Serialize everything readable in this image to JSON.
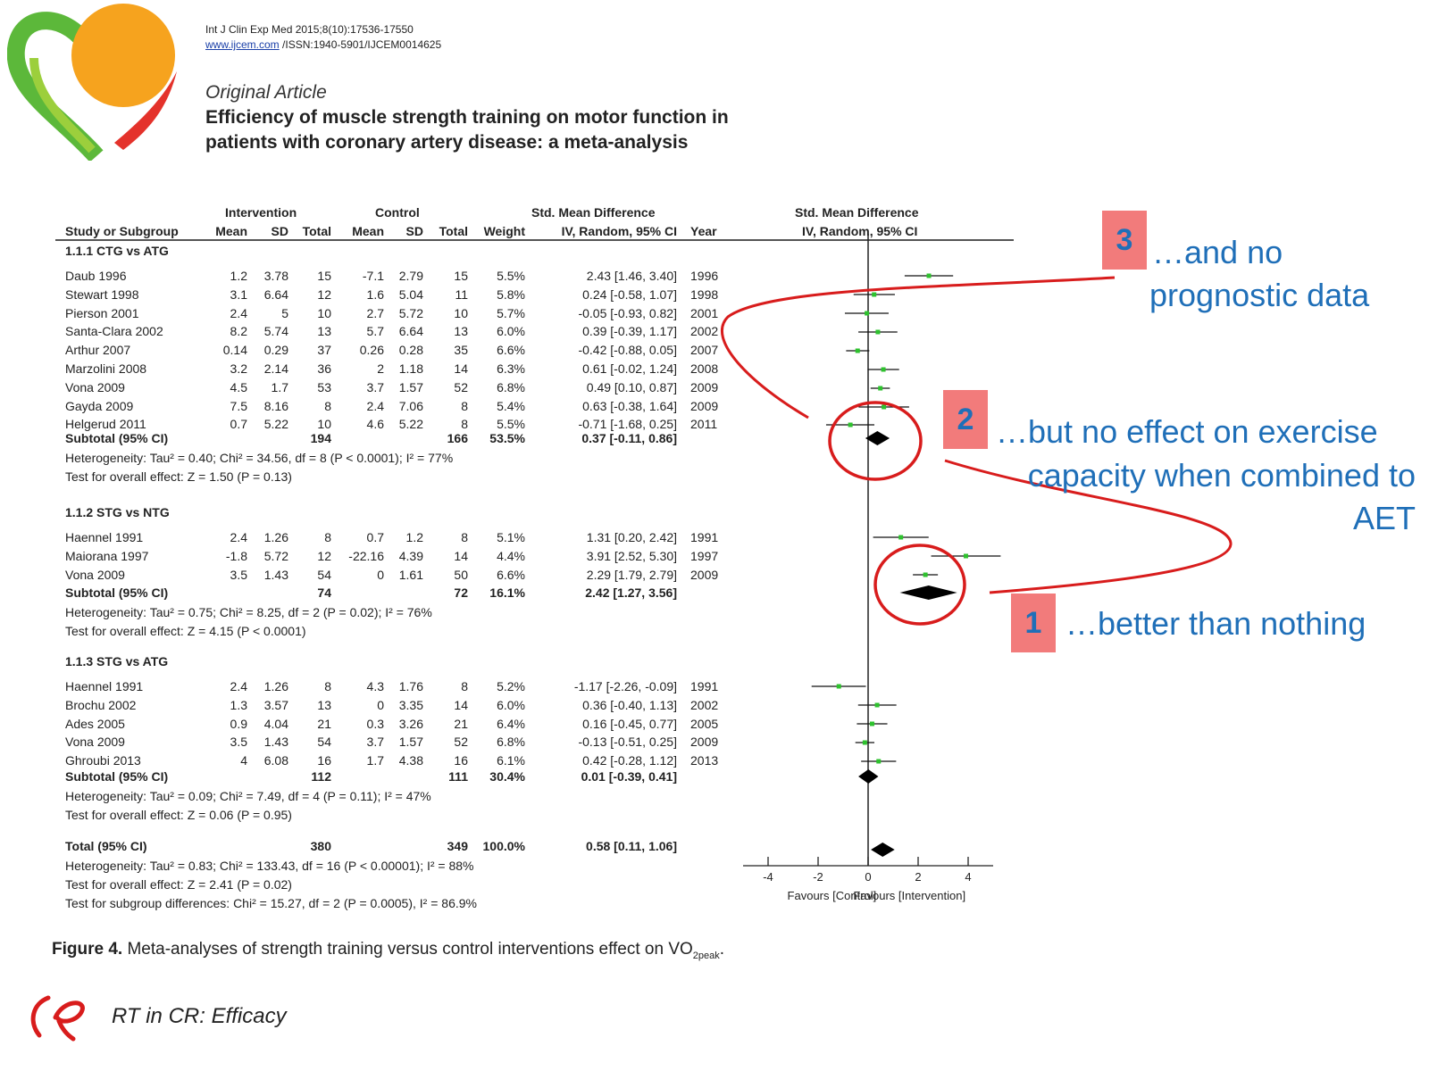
{
  "header": {
    "journal_line": "Int J Clin Exp Med 2015;8(10):17536-17550",
    "url": "www.ijcem.com",
    "issn": " /ISSN:1940-5901/IJCEM0014625",
    "article_type": "Original Article",
    "title": "Efficiency of muscle strength training on motor function in patients with coronary artery disease: a meta-analysis"
  },
  "table": {
    "group_headers": {
      "intervention": "Intervention",
      "control": "Control",
      "smd": "Std. Mean Difference",
      "smd_plot": "Std. Mean Difference"
    },
    "columns": {
      "study": "Study or Subgroup",
      "mean": "Mean",
      "sd": "SD",
      "total": "Total",
      "mean2": "Mean",
      "sd2": "SD",
      "total2": "Total",
      "weight": "Weight",
      "ci": "IV, Random, 95% CI",
      "year": "Year",
      "ci_plot": "IV, Random, 95% CI"
    },
    "subgroups": [
      {
        "title": "1.1.1 CTG vs ATG",
        "studies": [
          {
            "name": "Daub 1996",
            "m1": "1.2",
            "sd1": "3.78",
            "n1": "15",
            "m2": "-7.1",
            "sd2": "2.79",
            "n2": "15",
            "w": "5.5%",
            "ci": "2.43 [1.46, 3.40]",
            "year": "1996"
          },
          {
            "name": "Stewart 1998",
            "m1": "3.1",
            "sd1": "6.64",
            "n1": "12",
            "m2": "1.6",
            "sd2": "5.04",
            "n2": "11",
            "w": "5.8%",
            "ci": "0.24 [-0.58, 1.07]",
            "year": "1998"
          },
          {
            "name": "Pierson 2001",
            "m1": "2.4",
            "sd1": "5",
            "n1": "10",
            "m2": "2.7",
            "sd2": "5.72",
            "n2": "10",
            "w": "5.7%",
            "ci": "-0.05 [-0.93, 0.82]",
            "year": "2001"
          },
          {
            "name": "Santa-Clara 2002",
            "m1": "8.2",
            "sd1": "5.74",
            "n1": "13",
            "m2": "5.7",
            "sd2": "6.64",
            "n2": "13",
            "w": "6.0%",
            "ci": "0.39 [-0.39, 1.17]",
            "year": "2002"
          },
          {
            "name": "Arthur 2007",
            "m1": "0.14",
            "sd1": "0.29",
            "n1": "37",
            "m2": "0.26",
            "sd2": "0.28",
            "n2": "35",
            "w": "6.6%",
            "ci": "-0.42 [-0.88, 0.05]",
            "year": "2007"
          },
          {
            "name": "Marzolini 2008",
            "m1": "3.2",
            "sd1": "2.14",
            "n1": "36",
            "m2": "2",
            "sd2": "1.18",
            "n2": "14",
            "w": "6.3%",
            "ci": "0.61 [-0.02, 1.24]",
            "year": "2008"
          },
          {
            "name": "Vona 2009",
            "m1": "4.5",
            "sd1": "1.7",
            "n1": "53",
            "m2": "3.7",
            "sd2": "1.57",
            "n2": "52",
            "w": "6.8%",
            "ci": "0.49 [0.10, 0.87]",
            "year": "2009"
          },
          {
            "name": "Gayda 2009",
            "m1": "7.5",
            "sd1": "8.16",
            "n1": "8",
            "m2": "2.4",
            "sd2": "7.06",
            "n2": "8",
            "w": "5.4%",
            "ci": "0.63 [-0.38, 1.64]",
            "year": "2009"
          },
          {
            "name": "Helgerud 2011",
            "m1": "0.7",
            "sd1": "5.22",
            "n1": "10",
            "m2": "4.6",
            "sd2": "5.22",
            "n2": "8",
            "w": "5.5%",
            "ci": "-0.71 [-1.68, 0.25]",
            "year": "2011"
          }
        ],
        "subtotal": {
          "label": "Subtotal (95% CI)",
          "n1": "194",
          "n2": "166",
          "w": "53.5%",
          "ci": "0.37 [-0.11, 0.86]"
        },
        "heterogeneity": "Heterogeneity: Tau² = 0.40; Chi² = 34.56, df = 8 (P < 0.0001); I² = 77%",
        "overall": "Test for overall effect: Z = 1.50 (P = 0.13)"
      },
      {
        "title": "1.1.2 STG vs NTG",
        "studies": [
          {
            "name": "Haennel 1991",
            "m1": "2.4",
            "sd1": "1.26",
            "n1": "8",
            "m2": "0.7",
            "sd2": "1.2",
            "n2": "8",
            "w": "5.1%",
            "ci": "1.31 [0.20, 2.42]",
            "year": "1991"
          },
          {
            "name": "Maiorana 1997",
            "m1": "-1.8",
            "sd1": "5.72",
            "n1": "12",
            "m2": "-22.16",
            "sd2": "4.39",
            "n2": "14",
            "w": "4.4%",
            "ci": "3.91 [2.52, 5.30]",
            "year": "1997"
          },
          {
            "name": "Vona 2009",
            "m1": "3.5",
            "sd1": "1.43",
            "n1": "54",
            "m2": "0",
            "sd2": "1.61",
            "n2": "50",
            "w": "6.6%",
            "ci": "2.29 [1.79, 2.79]",
            "year": "2009"
          }
        ],
        "subtotal": {
          "label": "Subtotal (95% CI)",
          "n1": "74",
          "n2": "72",
          "w": "16.1%",
          "ci": "2.42 [1.27, 3.56]"
        },
        "heterogeneity": "Heterogeneity: Tau² = 0.75; Chi² = 8.25, df = 2 (P = 0.02); I² = 76%",
        "overall": "Test for overall effect: Z = 4.15 (P < 0.0001)"
      },
      {
        "title": "1.1.3 STG vs ATG",
        "studies": [
          {
            "name": "Haennel 1991",
            "m1": "2.4",
            "sd1": "1.26",
            "n1": "8",
            "m2": "4.3",
            "sd2": "1.76",
            "n2": "8",
            "w": "5.2%",
            "ci": "-1.17 [-2.26, -0.09]",
            "year": "1991"
          },
          {
            "name": "Brochu 2002",
            "m1": "1.3",
            "sd1": "3.57",
            "n1": "13",
            "m2": "0",
            "sd2": "3.35",
            "n2": "14",
            "w": "6.0%",
            "ci": "0.36 [-0.40, 1.13]",
            "year": "2002"
          },
          {
            "name": "Ades 2005",
            "m1": "0.9",
            "sd1": "4.04",
            "n1": "21",
            "m2": "0.3",
            "sd2": "3.26",
            "n2": "21",
            "w": "6.4%",
            "ci": "0.16 [-0.45, 0.77]",
            "year": "2005"
          },
          {
            "name": "Vona 2009",
            "m1": "3.5",
            "sd1": "1.43",
            "n1": "54",
            "m2": "3.7",
            "sd2": "1.57",
            "n2": "52",
            "w": "6.8%",
            "ci": "-0.13 [-0.51, 0.25]",
            "year": "2009"
          },
          {
            "name": "Ghroubi 2013",
            "m1": "4",
            "sd1": "6.08",
            "n1": "16",
            "m2": "1.7",
            "sd2": "4.38",
            "n2": "16",
            "w": "6.1%",
            "ci": "0.42 [-0.28, 1.12]",
            "year": "2013"
          }
        ],
        "subtotal": {
          "label": "Subtotal (95% CI)",
          "n1": "112",
          "n2": "111",
          "w": "30.4%",
          "ci": "0.01 [-0.39, 0.41]"
        },
        "heterogeneity": "Heterogeneity: Tau² = 0.09; Chi² = 7.49, df = 4 (P = 0.11); I² = 47%",
        "overall": "Test for overall effect: Z = 0.06 (P = 0.95)"
      }
    ],
    "total": {
      "label": "Total (95% CI)",
      "n1": "380",
      "n2": "349",
      "w": "100.0%",
      "ci": "0.58 [0.11, 1.06]"
    },
    "total_notes": [
      "Heterogeneity: Tau² = 0.83; Chi² = 133.43, df = 16 (P < 0.00001); I² = 88%",
      "Test for overall effect: Z = 2.41 (P = 0.02)",
      "Test for subgroup differences: Chi² = 15.27, df = 2 (P = 0.0005), I² = 86.9%"
    ]
  },
  "chart_data": {
    "type": "scatter",
    "subtype": "forest-plot",
    "xlim": [
      -5,
      5
    ],
    "x_ticks": [
      "-4",
      "-2",
      "0",
      "2",
      "4"
    ],
    "x_tick_values": [
      -4,
      -2,
      0,
      2,
      4
    ],
    "xlabel_left": "Favours [Control]",
    "xlabel_right": "Favours [Intervention]",
    "studies": [
      {
        "est": 2.43,
        "lo": 1.46,
        "hi": 3.4
      },
      {
        "est": 0.24,
        "lo": -0.58,
        "hi": 1.07
      },
      {
        "est": -0.05,
        "lo": -0.93,
        "hi": 0.82
      },
      {
        "est": 0.39,
        "lo": -0.39,
        "hi": 1.17
      },
      {
        "est": -0.42,
        "lo": -0.88,
        "hi": 0.05
      },
      {
        "est": 0.61,
        "lo": -0.02,
        "hi": 1.24
      },
      {
        "est": 0.49,
        "lo": 0.1,
        "hi": 0.87
      },
      {
        "est": 0.63,
        "lo": -0.38,
        "hi": 1.64
      },
      {
        "est": -0.71,
        "lo": -1.68,
        "hi": 0.25
      },
      {
        "est": 1.31,
        "lo": 0.2,
        "hi": 2.42
      },
      {
        "est": 3.91,
        "lo": 2.52,
        "hi": 5.3
      },
      {
        "est": 2.29,
        "lo": 1.79,
        "hi": 2.79
      },
      {
        "est": -1.17,
        "lo": -2.26,
        "hi": -0.09
      },
      {
        "est": 0.36,
        "lo": -0.4,
        "hi": 1.13
      },
      {
        "est": 0.16,
        "lo": -0.45,
        "hi": 0.77
      },
      {
        "est": -0.13,
        "lo": -0.51,
        "hi": 0.25
      },
      {
        "est": 0.42,
        "lo": -0.28,
        "hi": 1.12
      }
    ],
    "diamonds": [
      {
        "est": 0.37,
        "lo": -0.11,
        "hi": 0.86
      },
      {
        "est": 2.42,
        "lo": 1.27,
        "hi": 3.56
      },
      {
        "est": 0.01,
        "lo": -0.39,
        "hi": 0.41
      },
      {
        "est": 0.58,
        "lo": 0.11,
        "hi": 1.06
      }
    ],
    "point_color": "#2ec22e",
    "annotation_color": "#d81c1c"
  },
  "annotations": {
    "a1": {
      "num": "1",
      "text": "…better than nothing"
    },
    "a2": {
      "num": "2",
      "lines": [
        "…but no effect on exercise",
        "capacity when combined to",
        "AET"
      ]
    },
    "a3": {
      "num": "3",
      "lines": [
        "…and no",
        "prognostic data"
      ]
    }
  },
  "caption": {
    "prefix": "Figure 4.",
    "text": " Meta-analyses of strength training versus control interventions effect on VO",
    "sub": "2peak",
    "suffix": "."
  },
  "footer": {
    "text": "RT in CR: Efficacy"
  }
}
